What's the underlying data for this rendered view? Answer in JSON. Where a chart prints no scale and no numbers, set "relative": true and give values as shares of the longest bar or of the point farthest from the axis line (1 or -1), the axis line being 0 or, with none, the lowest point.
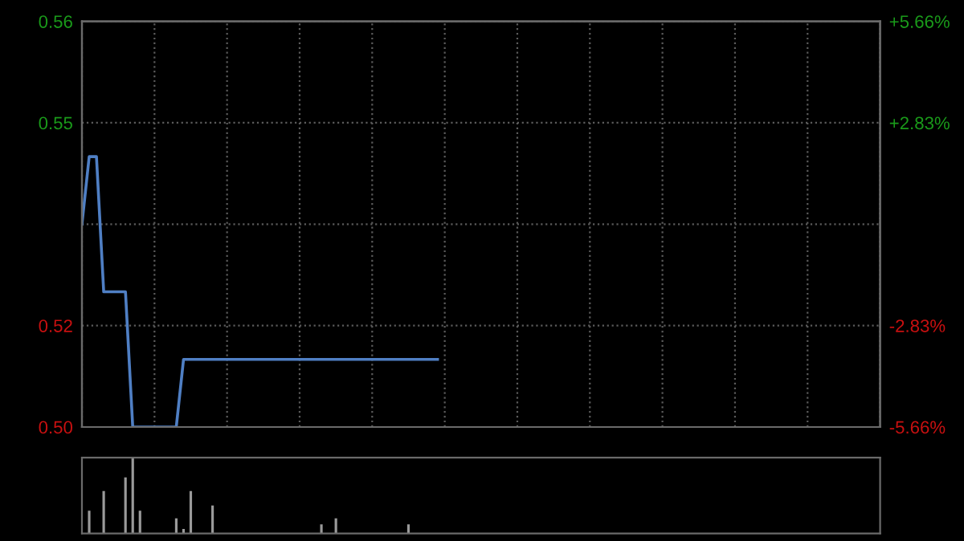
{
  "chart_data": [
    {
      "type": "line",
      "categories": [
        null,
        null,
        null,
        null,
        null,
        null,
        null,
        null,
        null,
        null,
        null,
        null,
        null,
        null,
        null,
        null,
        null,
        null,
        null,
        null,
        null,
        null,
        null,
        null,
        null,
        null,
        null,
        null,
        null,
        null,
        null,
        null,
        null,
        null,
        null,
        null,
        null,
        null,
        null,
        null,
        null,
        null,
        null,
        null,
        null,
        null,
        null,
        null,
        null,
        null,
        null,
        null,
        null,
        null,
        null,
        null,
        null,
        null,
        null,
        null,
        null,
        null,
        null,
        null,
        null,
        null,
        null,
        null,
        null,
        null,
        null,
        null,
        null,
        null,
        null,
        null,
        null,
        null,
        null,
        null,
        null,
        null,
        null,
        null,
        null,
        null,
        null,
        null,
        null,
        null,
        null,
        null,
        null,
        null,
        null,
        null,
        null,
        null,
        null,
        null,
        null,
        null,
        null,
        null,
        null,
        null,
        null,
        null,
        null,
        null,
        null
      ],
      "series": [
        {
          "color": "#4f7fc4",
          "values": [
            0.53,
            0.54,
            0.54,
            0.52,
            0.52,
            0.52,
            0.52,
            0.5,
            0.5,
            0.5,
            0.5,
            0.5,
            0.5,
            0.5,
            0.51,
            0.51,
            0.51,
            0.51,
            0.51,
            0.51,
            0.51,
            0.51,
            0.51,
            0.51,
            0.51,
            0.51,
            0.51,
            0.51,
            0.51,
            0.51,
            0.51,
            0.51,
            0.51,
            0.51,
            0.51,
            0.51,
            0.51,
            0.51,
            0.51,
            0.51,
            0.51,
            0.51,
            0.51,
            0.51,
            0.51,
            0.51,
            0.51,
            0.51,
            0.51,
            0.51,
            null,
            null,
            null,
            null,
            null,
            null,
            null,
            null,
            null,
            null,
            null,
            null,
            null,
            null,
            null,
            null,
            null,
            null,
            null,
            null,
            null,
            null,
            null,
            null,
            null,
            null,
            null,
            null,
            null,
            null,
            null,
            null,
            null,
            null,
            null,
            null,
            null,
            null,
            null,
            null,
            null,
            null,
            null,
            null,
            null,
            null,
            null,
            null,
            null,
            null,
            null,
            null,
            null,
            null,
            null,
            null,
            null,
            null,
            null,
            null,
            null
          ]
        }
      ],
      "ylim": [
        0.5,
        0.56
      ],
      "yticks": [
        {
          "value": 0.56,
          "label": "0.56"
        },
        {
          "value": 0.545,
          "label": "0.55"
        },
        {
          "value": 0.53,
          "label": null
        },
        {
          "value": 0.515,
          "label": "0.52"
        },
        {
          "value": 0.5,
          "label": "0.50"
        }
      ],
      "y2lim": [
        -5.66,
        5.66
      ],
      "y2ticks": [
        {
          "value": 5.66,
          "label": "+5.66%"
        },
        {
          "value": 2.83,
          "label": "+2.83%"
        },
        {
          "value": 0,
          "label": null
        },
        {
          "value": -2.83,
          "label": "-2.83%"
        },
        {
          "value": -5.66,
          "label": "-5.66%"
        }
      ],
      "grid": true,
      "tick_labels": "y",
      "marker": "none",
      "line_style": "solid"
    },
    {
      "type": "bar",
      "relative": true,
      "categories": [
        null,
        null,
        null,
        null,
        null,
        null,
        null,
        null,
        null,
        null,
        null,
        null,
        null,
        null,
        null,
        null,
        null,
        null,
        null,
        null,
        null,
        null,
        null,
        null,
        null,
        null,
        null,
        null,
        null,
        null,
        null,
        null,
        null,
        null,
        null,
        null,
        null,
        null,
        null,
        null,
        null,
        null,
        null,
        null,
        null,
        null,
        null,
        null,
        null,
        null,
        null,
        null,
        null,
        null,
        null,
        null,
        null,
        null,
        null,
        null,
        null,
        null,
        null,
        null,
        null,
        null,
        null,
        null,
        null,
        null,
        null,
        null,
        null,
        null,
        null,
        null,
        null,
        null,
        null,
        null,
        null,
        null,
        null,
        null,
        null,
        null,
        null,
        null,
        null,
        null,
        null,
        null,
        null,
        null,
        null,
        null,
        null,
        null,
        null,
        null,
        null,
        null,
        null,
        null,
        null,
        null,
        null,
        null,
        null,
        null,
        null
      ],
      "color": "#9a9a9a",
      "values": [
        0,
        0.3,
        0,
        0.56,
        0,
        0,
        0.74,
        1.0,
        0.3,
        0,
        0,
        0,
        0,
        0.2,
        0.06,
        0.56,
        0,
        0,
        0.37,
        0,
        0,
        0,
        0,
        0,
        0,
        0,
        0,
        0,
        0,
        0,
        0,
        0,
        0,
        0.12,
        0,
        0.2,
        0,
        0,
        0,
        0,
        0,
        0,
        0,
        0,
        0,
        0.12,
        0,
        0,
        0,
        0,
        null,
        null,
        null,
        null,
        null,
        null,
        null,
        null,
        null,
        null,
        null,
        null,
        null,
        null,
        null,
        null,
        null,
        null,
        null,
        null,
        null,
        null,
        null,
        null,
        null,
        null,
        null,
        null,
        null,
        null,
        null,
        null,
        null,
        null,
        null,
        null,
        null,
        null,
        null,
        null,
        null,
        null,
        null,
        null,
        null,
        null,
        null,
        null,
        null,
        null,
        null,
        null,
        null,
        null,
        null,
        null,
        null,
        null,
        null,
        null,
        null
      ],
      "tick_labels": false
    }
  ]
}
